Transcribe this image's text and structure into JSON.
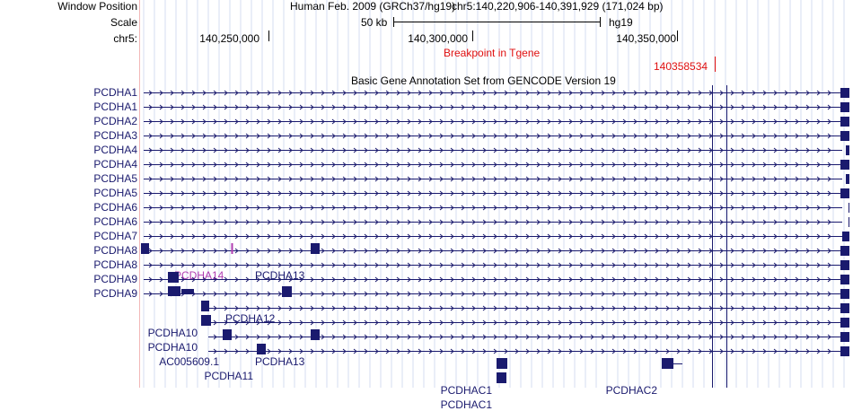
{
  "header": {
    "window_position_label": "Window Position",
    "scale_label": "Scale",
    "chrom_label": "chr5:",
    "assembly_text": "Human Feb. 2009 (GRCh37/hg19)",
    "position_text": "chr5:140,220,906-140,391,929 (171,024 bp)",
    "scale_text": "50 kb",
    "db_text": "hg19",
    "ruler_ticks": [
      "140,250,000",
      "140,300,000",
      "140,350,000"
    ]
  },
  "breakpoint": {
    "title": "Breakpoint in Tgene",
    "position": "140358534"
  },
  "track": {
    "title": "Basic Gene Annotation Set from GENCODE Version 19"
  },
  "rows": [
    {
      "label": "PCDHA1"
    },
    {
      "label": "PCDHA1"
    },
    {
      "label": "PCDHA2"
    },
    {
      "label": "PCDHA3"
    },
    {
      "label": "PCDHA4"
    },
    {
      "label": "PCDHA4"
    },
    {
      "label": "PCDHA5"
    },
    {
      "label": "PCDHA5"
    },
    {
      "label": "PCDHA6"
    },
    {
      "label": "PCDHA6"
    },
    {
      "label": "PCDHA7"
    },
    {
      "label": "PCDHA8"
    },
    {
      "label": "PCDHA8"
    },
    {
      "label": "PCDHA9"
    },
    {
      "label": "PCDHA9"
    }
  ],
  "inline_labels": {
    "pcdha14": "PCDHA14",
    "pcdha13a": "PCDHA13",
    "pcdha12": "PCDHA12",
    "pcdha10a": "PCDHA10",
    "pcdha10b": "PCDHA10",
    "ac005609": "AC005609.1",
    "pcdha13b": "PCDHA13",
    "pcdha11": "PCDHA11",
    "pcdhac1a": "PCDHAC1",
    "pcdhac2": "PCDHAC2",
    "pcdhac1b": "PCDHAC1"
  },
  "colors": {
    "gene": "#1a1a6e",
    "breakpoint": "#e01010",
    "non_coding": "#b03cb0",
    "grid": "#d6dcf2",
    "guide": "#f2b8b8"
  }
}
